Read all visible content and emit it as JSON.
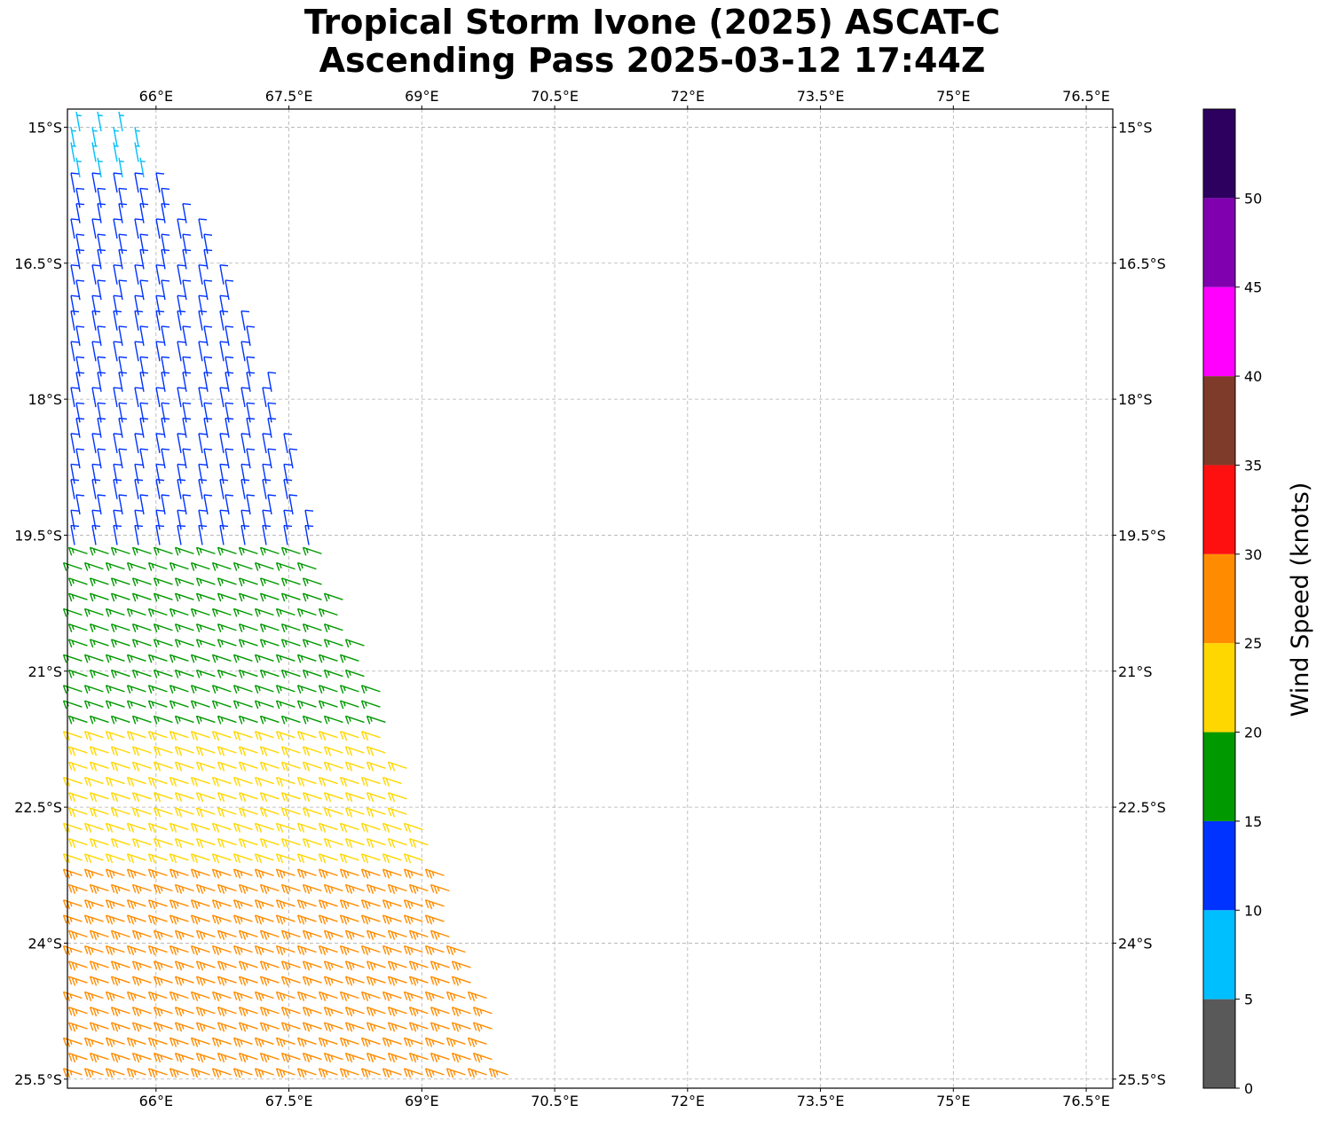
{
  "title": {
    "line1": "Tropical Storm Ivone (2025) ASCAT-C",
    "line2": "Ascending Pass 2025-03-12 17:44Z"
  },
  "map": {
    "lon_range": [
      65.0,
      76.8
    ],
    "lat_range": [
      -25.6,
      -14.8
    ],
    "lon_ticks": [
      "66°E",
      "67.5°E",
      "69°E",
      "70.5°E",
      "72°E",
      "73.5°E",
      "75°E",
      "76.5°E"
    ],
    "lat_ticks": [
      "15°S",
      "16.5°S",
      "18°S",
      "19.5°S",
      "21°S",
      "22.5°S",
      "24°S",
      "25.5°S"
    ],
    "grid": "dashed",
    "barb_style": "wind barbs, half barb = 5 kt, full barb = 10 kt",
    "swath_description": "wind barbs within ascending swath; winds increase to the south-east",
    "speed_bands": [
      {
        "lat_max": -14.8,
        "lat_min": -15.5,
        "speed_kt": 8,
        "color": "#00bfff"
      },
      {
        "lat_max": -15.5,
        "lat_min": -19.6,
        "speed_kt": 12,
        "color": "#0033ff"
      },
      {
        "lat_max": -19.6,
        "lat_min": -21.6,
        "speed_kt": 17,
        "color": "#009900"
      },
      {
        "lat_max": -21.6,
        "lat_min": -23.2,
        "speed_kt": 22,
        "color": "#ffd700"
      },
      {
        "lat_max": -23.2,
        "lat_min": -25.6,
        "speed_kt": 27,
        "color": "#ff8c00"
      }
    ]
  },
  "colorbar": {
    "label": "Wind Speed (knots)",
    "tick_labels": [
      "0",
      "5",
      "10",
      "15",
      "20",
      "25",
      "30",
      "35",
      "40",
      "45",
      "50"
    ],
    "bins": [
      {
        "from": 0,
        "to": 5,
        "color": "#595959"
      },
      {
        "from": 5,
        "to": 10,
        "color": "#00bfff"
      },
      {
        "from": 10,
        "to": 15,
        "color": "#0033ff"
      },
      {
        "from": 15,
        "to": 20,
        "color": "#009900"
      },
      {
        "from": 20,
        "to": 25,
        "color": "#ffd700"
      },
      {
        "from": 25,
        "to": 30,
        "color": "#ff8c00"
      },
      {
        "from": 30,
        "to": 35,
        "color": "#ff1010"
      },
      {
        "from": 35,
        "to": 40,
        "color": "#7f3b2a"
      },
      {
        "from": 40,
        "to": 45,
        "color": "#ff00ff"
      },
      {
        "from": 45,
        "to": 50,
        "color": "#8000b0"
      },
      {
        "from": 50,
        "to": 55,
        "color": "#2d0060"
      }
    ]
  }
}
